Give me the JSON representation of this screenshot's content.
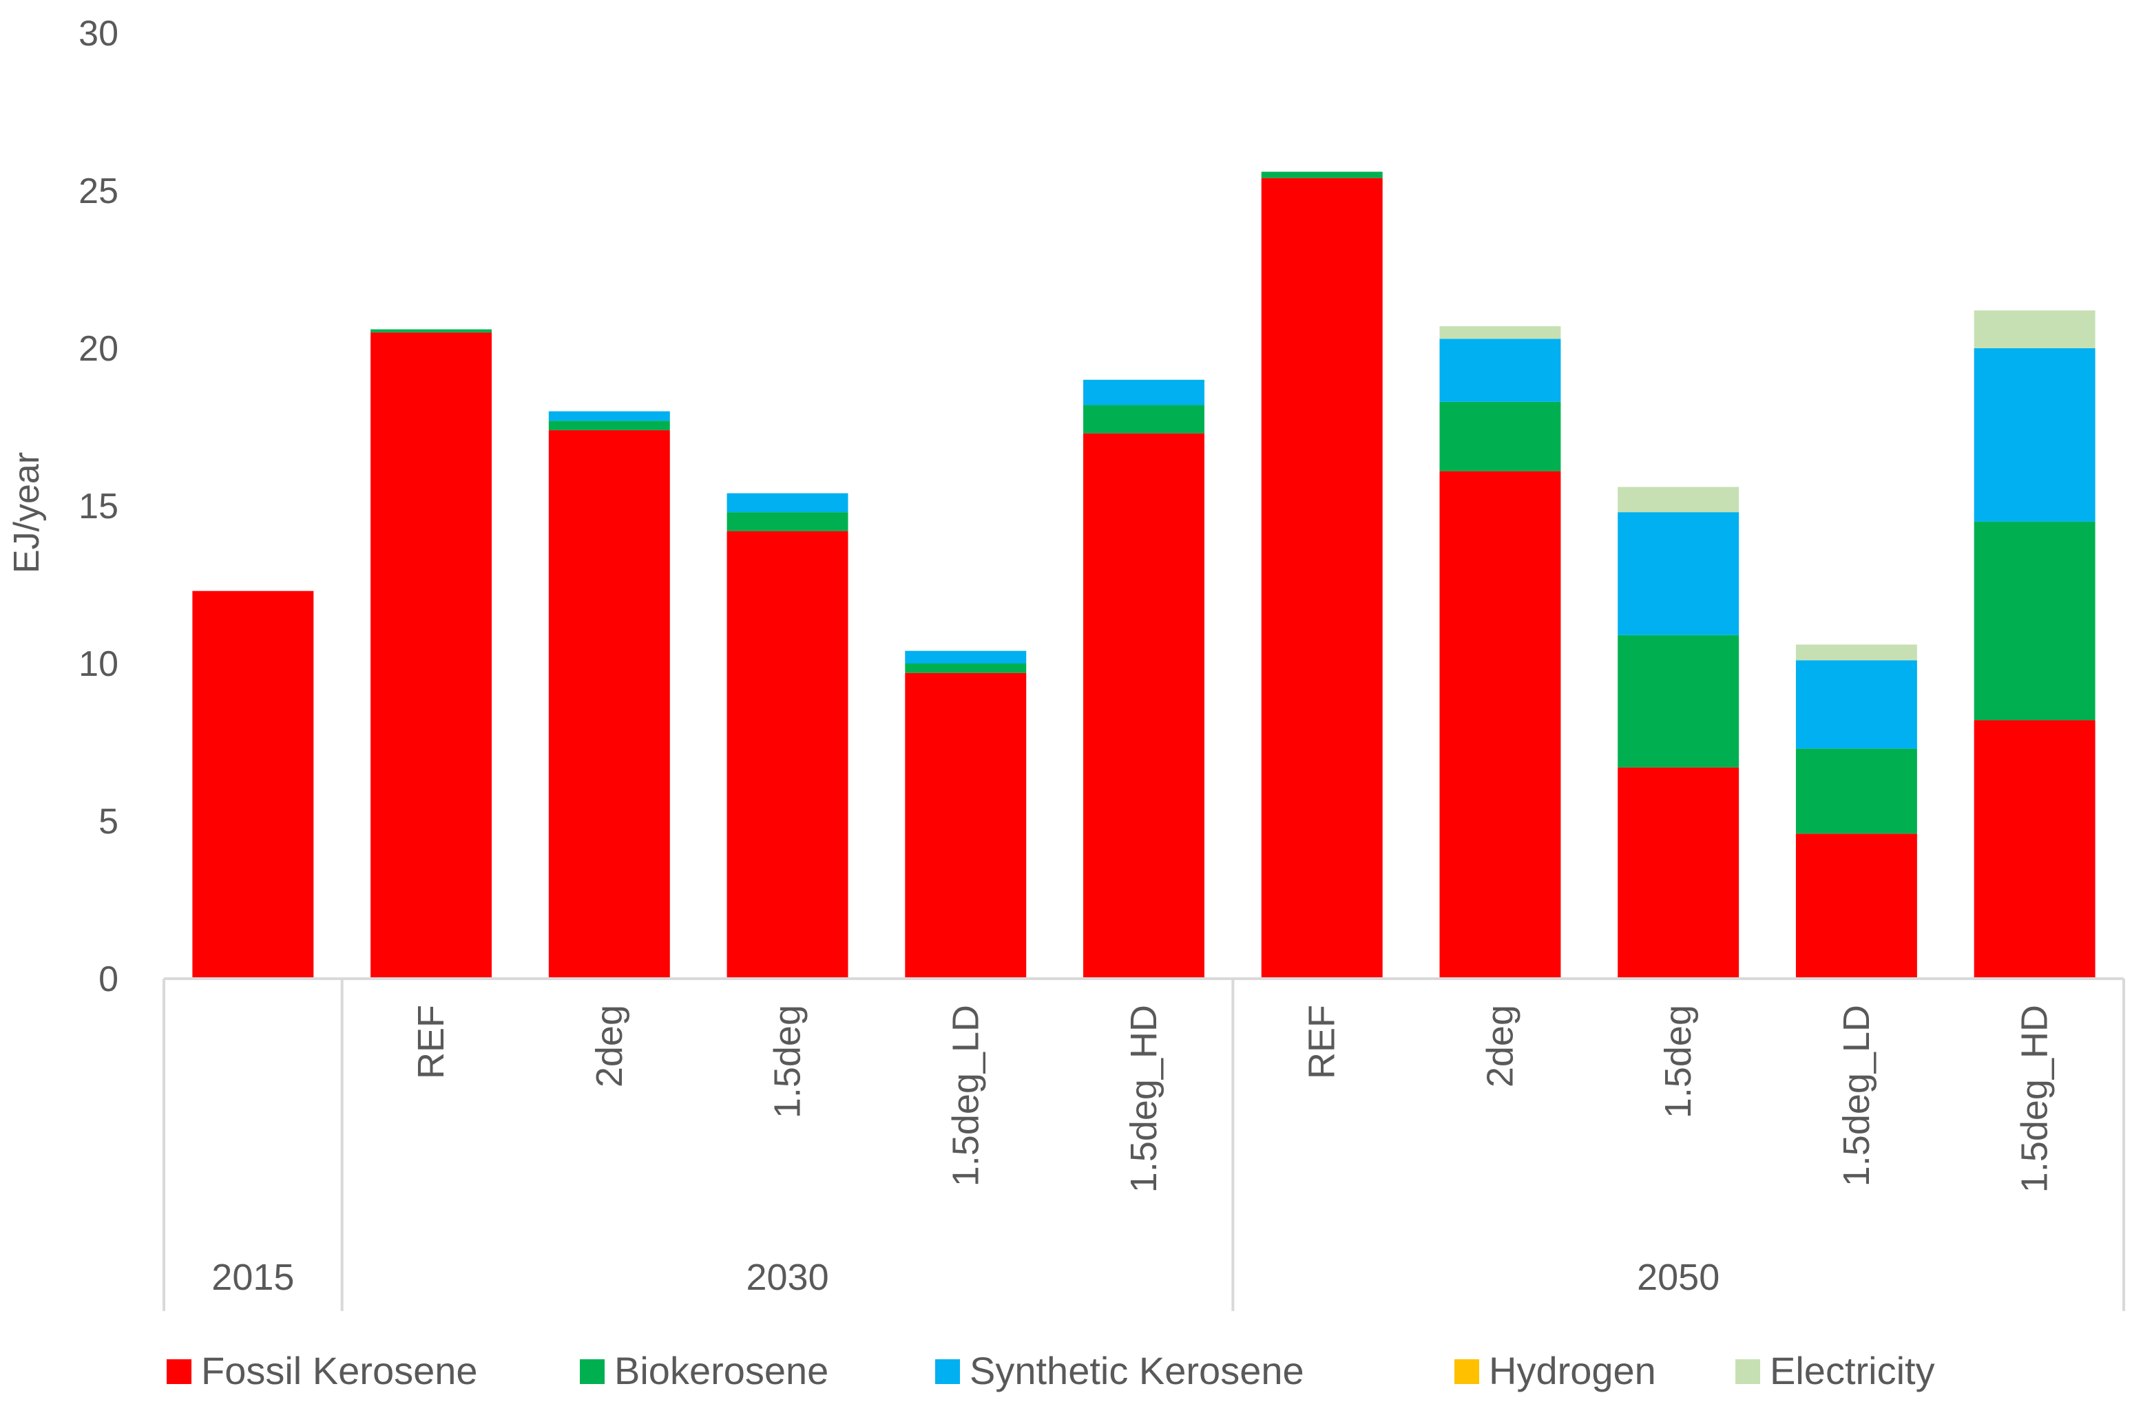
{
  "chart_data": {
    "type": "bar",
    "stacked": true,
    "title": "",
    "xlabel": "",
    "ylabel": "EJ/year",
    "ylim": [
      0,
      30
    ],
    "yticks": [
      0,
      5,
      10,
      15,
      20,
      25,
      30
    ],
    "grid": false,
    "legend_position": "bottom",
    "groups": [
      {
        "label": "2015",
        "categories": [
          ""
        ]
      },
      {
        "label": "2030",
        "categories": [
          "REF",
          "2deg",
          "1.5deg",
          "1.5deg_LD",
          "1.5deg_HD"
        ]
      },
      {
        "label": "2050",
        "categories": [
          "REF",
          "2deg",
          "1.5deg",
          "1.5deg_LD",
          "1.5deg_HD"
        ]
      }
    ],
    "series": [
      {
        "name": "Fossil Kerosene",
        "color": "#ff0000",
        "values": [
          12.3,
          20.5,
          17.4,
          14.2,
          9.7,
          17.3,
          25.4,
          16.1,
          6.7,
          4.6,
          8.2
        ]
      },
      {
        "name": "Biokerosene",
        "color": "#00b050",
        "values": [
          0,
          0.1,
          0.3,
          0.6,
          0.3,
          0.9,
          0.2,
          2.2,
          4.2,
          2.7,
          6.3
        ]
      },
      {
        "name": "Synthetic Kerosene",
        "color": "#00b0f0",
        "values": [
          0,
          0,
          0.3,
          0.6,
          0.4,
          0.8,
          0,
          2.0,
          3.9,
          2.8,
          5.5
        ]
      },
      {
        "name": "Hydrogen",
        "color": "#ffc000",
        "values": [
          0,
          0,
          0,
          0,
          0,
          0,
          0,
          0,
          0,
          0,
          0
        ]
      },
      {
        "name": "Electricity",
        "color": "#c6e0b4",
        "values": [
          0,
          0,
          0,
          0,
          0,
          0,
          0,
          0.4,
          0.8,
          0.5,
          1.2
        ]
      }
    ]
  }
}
